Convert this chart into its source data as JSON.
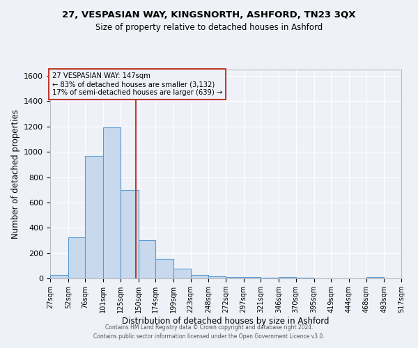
{
  "title1": "27, VESPASIAN WAY, KINGSNORTH, ASHFORD, TN23 3QX",
  "title2": "Size of property relative to detached houses in Ashford",
  "xlabel": "Distribution of detached houses by size in Ashford",
  "ylabel": "Number of detached properties",
  "footer1": "Contains HM Land Registry data © Crown copyright and database right 2024.",
  "footer2": "Contains public sector information licensed under the Open Government Licence v3.0.",
  "annotation_line1": "27 VESPASIAN WAY: 147sqm",
  "annotation_line2": "← 83% of detached houses are smaller (3,132)",
  "annotation_line3": "17% of semi-detached houses are larger (639) →",
  "property_value": 147,
  "bar_color": "#c9d9ed",
  "bar_edgecolor": "#5b9bd5",
  "redline_color": "#c0392b",
  "background_color": "#eef2f8",
  "bins": [
    27,
    52,
    76,
    101,
    125,
    150,
    174,
    199,
    223,
    248,
    272,
    297,
    321,
    346,
    370,
    395,
    419,
    444,
    468,
    493,
    517
  ],
  "counts": [
    25,
    325,
    970,
    1195,
    700,
    305,
    155,
    75,
    30,
    18,
    12,
    10,
    8,
    12,
    8,
    0,
    0,
    0,
    10,
    0
  ],
  "ylim": [
    0,
    1650
  ],
  "yticks": [
    0,
    200,
    400,
    600,
    800,
    1000,
    1200,
    1400,
    1600
  ],
  "xtick_labels": [
    "27sqm",
    "52sqm",
    "76sqm",
    "101sqm",
    "125sqm",
    "150sqm",
    "174sqm",
    "199sqm",
    "223sqm",
    "248sqm",
    "272sqm",
    "297sqm",
    "321sqm",
    "346sqm",
    "370sqm",
    "395sqm",
    "419sqm",
    "444sqm",
    "468sqm",
    "493sqm",
    "517sqm"
  ]
}
